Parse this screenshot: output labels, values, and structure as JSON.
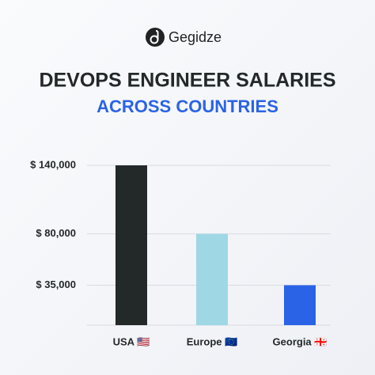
{
  "brand": "Gegidze",
  "chart_data": {
    "type": "bar",
    "title": "DEVOPS ENGINEER SALARIES",
    "subtitle": "ACROSS COUNTRIES",
    "categories": [
      "USA 🇺🇸",
      "Europe 🇪🇺",
      "Georgia 🇬🇪"
    ],
    "values": [
      140000,
      80000,
      35000
    ],
    "colors": [
      "#232829",
      "#9fd7e5",
      "#2b63e6"
    ],
    "ylim": [
      0,
      140000
    ],
    "yticks": [
      {
        "value": 35000,
        "label": "$ 35,000"
      },
      {
        "value": 80000,
        "label": "$ 80,000"
      },
      {
        "value": 140000,
        "label": "$ 140,000"
      }
    ],
    "grid": true
  }
}
